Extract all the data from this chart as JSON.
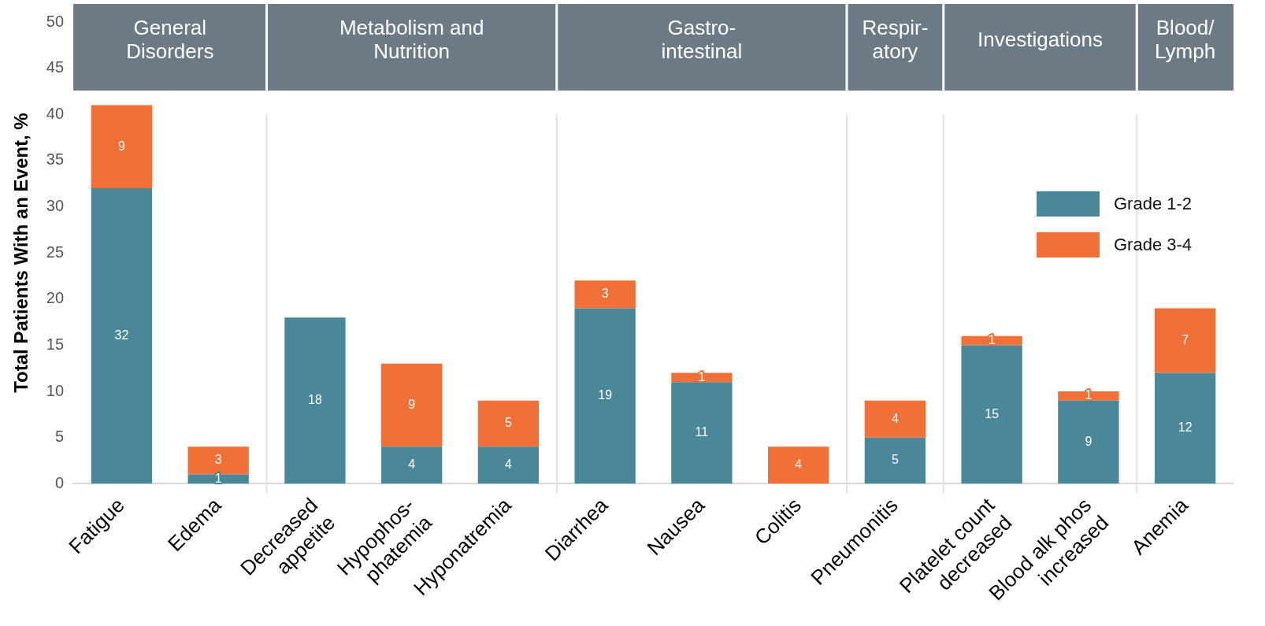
{
  "chart_data": {
    "type": "bar",
    "stacked": true,
    "ylabel": "Total Patients With an Event, %",
    "categories": [
      "Fatigue",
      "Edema",
      "Decreased\nappetite",
      "Hypophos-\nphatemia",
      "Hyponatremia",
      "Diarrhea",
      "Nausea",
      "Colitis",
      "Pneumonitis",
      "Platelet count\ndecreased",
      "Blood alk phos\nincreased",
      "Anemia"
    ],
    "series": [
      {
        "name": "Grade 1-2",
        "color": "#4a8798",
        "values": [
          32,
          1,
          18,
          4,
          4,
          19,
          11,
          null,
          5,
          15,
          9,
          12
        ]
      },
      {
        "name": "Grade 3-4",
        "color": "#f07038",
        "values": [
          9,
          3,
          null,
          9,
          5,
          3,
          1,
          4,
          4,
          1,
          1,
          7
        ]
      }
    ],
    "bands": [
      {
        "axis": "x",
        "from": "Fatigue",
        "to": "Edema",
        "label": "General\nDisorders",
        "color": "#6c7a86"
      },
      {
        "axis": "x",
        "from": "Decreased\nappetite",
        "to": "Hyponatremia",
        "label": "Metabolism and\nNutrition",
        "color": "#6c7a86"
      },
      {
        "axis": "x",
        "from": "Diarrhea",
        "to": "Colitis",
        "label": "Gastro-\nintestinal",
        "color": "#6c7a86"
      },
      {
        "axis": "x",
        "from": "Pneumonitis",
        "to": "Pneumonitis",
        "label": "Respir-\natory",
        "color": "#6c7a86"
      },
      {
        "axis": "x",
        "from": "Platelet count\ndecreased",
        "to": "Blood alk phos\nincreased",
        "label": "Investigations",
        "color": "#6c7a86"
      },
      {
        "axis": "x",
        "from": "Anemia",
        "to": "Anemia",
        "label": "Blood/\nLymph",
        "color": "#6c7a86"
      }
    ],
    "ylim": [
      0,
      50
    ],
    "yticks": [
      0,
      5,
      10,
      15,
      20,
      25,
      30,
      35,
      40,
      45,
      50
    ],
    "data_labels": true,
    "legend": "right",
    "grid": false
  }
}
